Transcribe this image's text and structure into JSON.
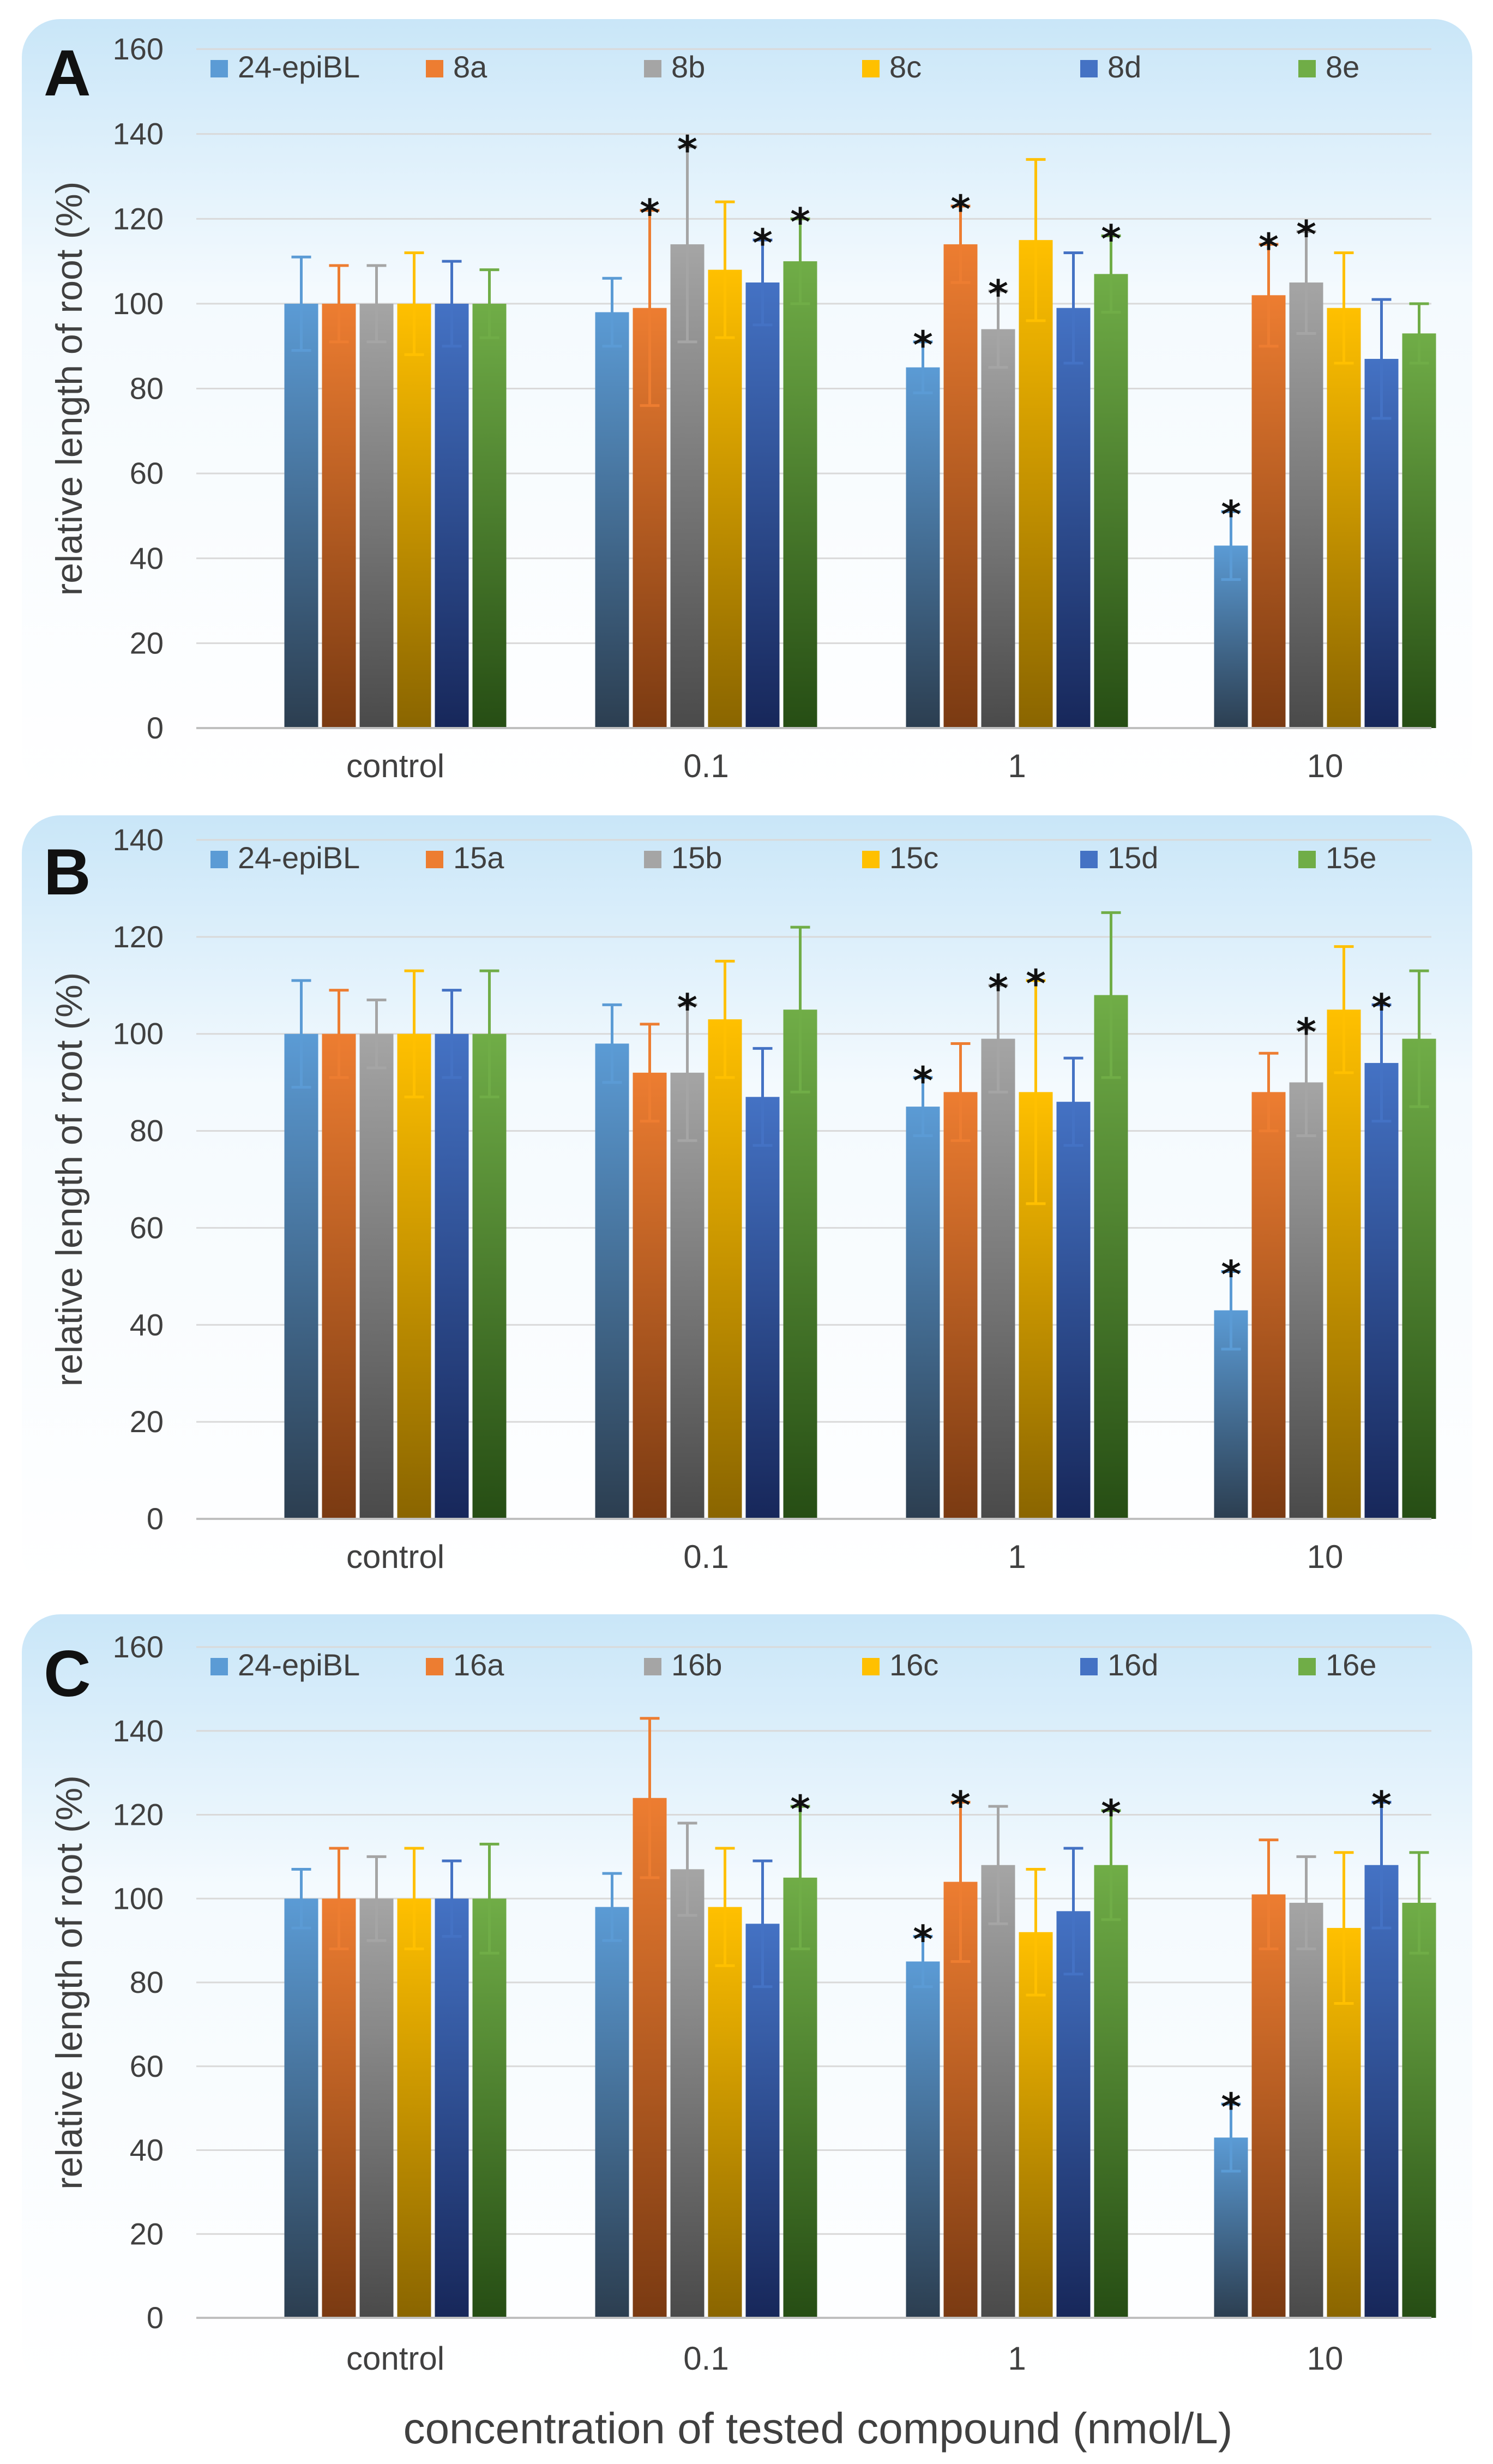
{
  "figure": {
    "xlabel": "concentration of tested compound  (nmol/L)",
    "ylabel": "relative length of root (%)",
    "colors": {
      "s1": [
        "#5b9bd5",
        "#2c3e50"
      ],
      "s2": [
        "#ed7d31",
        "#7a3a12"
      ],
      "s3": [
        "#a5a5a5",
        "#4a4a4a"
      ],
      "s4": [
        "#ffc000",
        "#8a6500"
      ],
      "s5": [
        "#4472c4",
        "#17275a"
      ],
      "s6": [
        "#70ad47",
        "#264d14"
      ]
    },
    "errColors": [
      "#5b9bd5",
      "#ed7d31",
      "#a5a5a5",
      "#ffc000",
      "#4472c4",
      "#70ad47"
    ]
  },
  "chart_data": [
    {
      "panel": "A",
      "type": "bar",
      "ylabel": "relative length of root (%)",
      "xlabel": "",
      "ylim": [
        0,
        160
      ],
      "yticks": [
        0,
        20,
        40,
        60,
        80,
        100,
        120,
        140,
        160
      ],
      "categories": [
        "control",
        "0.1",
        "1",
        "10"
      ],
      "series": [
        {
          "name": "24-epiBL",
          "values": [
            100,
            98,
            85,
            43
          ],
          "errors": [
            11,
            8,
            6,
            8
          ],
          "stars": [
            false,
            false,
            true,
            true
          ]
        },
        {
          "name": "8a",
          "values": [
            100,
            99,
            114,
            102
          ],
          "errors": [
            9,
            23,
            9,
            12
          ],
          "stars": [
            false,
            true,
            true,
            true
          ]
        },
        {
          "name": "8b",
          "values": [
            100,
            114,
            94,
            105
          ],
          "errors": [
            9,
            23,
            9,
            12
          ],
          "stars": [
            false,
            true,
            true,
            true
          ]
        },
        {
          "name": "8c",
          "values": [
            100,
            108,
            115,
            99
          ],
          "errors": [
            12,
            16,
            19,
            13
          ],
          "stars": [
            false,
            false,
            false,
            false
          ]
        },
        {
          "name": "8d",
          "values": [
            100,
            105,
            99,
            87
          ],
          "errors": [
            10,
            10,
            13,
            14
          ],
          "stars": [
            false,
            true,
            false,
            false
          ]
        },
        {
          "name": "8e",
          "values": [
            100,
            110,
            107,
            93
          ],
          "errors": [
            8,
            10,
            9,
            7
          ],
          "stars": [
            false,
            true,
            true,
            false
          ]
        }
      ]
    },
    {
      "panel": "B",
      "type": "bar",
      "ylabel": "relative length of root (%)",
      "xlabel": "",
      "ylim": [
        0,
        140
      ],
      "yticks": [
        0,
        20,
        40,
        60,
        80,
        100,
        120,
        140
      ],
      "categories": [
        "control",
        "0.1",
        "1",
        "10"
      ],
      "series": [
        {
          "name": "24-epiBL",
          "values": [
            100,
            98,
            85,
            43
          ],
          "errors": [
            11,
            8,
            6,
            8
          ],
          "stars": [
            false,
            false,
            true,
            true
          ]
        },
        {
          "name": "15a",
          "values": [
            100,
            92,
            88,
            88
          ],
          "errors": [
            9,
            10,
            10,
            8
          ],
          "stars": [
            false,
            false,
            false,
            false
          ]
        },
        {
          "name": "15b",
          "values": [
            100,
            92,
            99,
            90
          ],
          "errors": [
            7,
            14,
            11,
            11
          ],
          "stars": [
            false,
            true,
            true,
            true
          ]
        },
        {
          "name": "15c",
          "values": [
            100,
            103,
            88,
            105
          ],
          "errors": [
            13,
            12,
            23,
            13
          ],
          "stars": [
            false,
            false,
            true,
            false
          ]
        },
        {
          "name": "15d",
          "values": [
            100,
            87,
            86,
            94
          ],
          "errors": [
            9,
            10,
            9,
            12
          ],
          "stars": [
            false,
            false,
            false,
            true
          ]
        },
        {
          "name": "15e",
          "values": [
            100,
            105,
            108,
            99
          ],
          "errors": [
            13,
            17,
            17,
            14
          ],
          "stars": [
            false,
            false,
            false,
            false
          ]
        }
      ]
    },
    {
      "panel": "C",
      "type": "bar",
      "ylabel": "relative length of root (%)",
      "xlabel": "concentration of tested compound  (nmol/L)",
      "ylim": [
        0,
        160
      ],
      "yticks": [
        0,
        20,
        40,
        60,
        80,
        100,
        120,
        140,
        160
      ],
      "categories": [
        "control",
        "0.1",
        "1",
        "10"
      ],
      "series": [
        {
          "name": "24-epiBL",
          "values": [
            100,
            98,
            85,
            43
          ],
          "errors": [
            7,
            8,
            6,
            8
          ],
          "stars": [
            false,
            false,
            true,
            true
          ]
        },
        {
          "name": "16a",
          "values": [
            100,
            124,
            104,
            101
          ],
          "errors": [
            12,
            19,
            19,
            13
          ],
          "stars": [
            false,
            false,
            true,
            false
          ]
        },
        {
          "name": "16b",
          "values": [
            100,
            107,
            108,
            99
          ],
          "errors": [
            10,
            11,
            14,
            11
          ],
          "stars": [
            false,
            false,
            false,
            false
          ]
        },
        {
          "name": "16c",
          "values": [
            100,
            98,
            92,
            93
          ],
          "errors": [
            12,
            14,
            15,
            18
          ],
          "stars": [
            false,
            false,
            false,
            false
          ]
        },
        {
          "name": "16d",
          "values": [
            100,
            94,
            97,
            108
          ],
          "errors": [
            9,
            15,
            15,
            15
          ],
          "stars": [
            false,
            false,
            false,
            true
          ]
        },
        {
          "name": "16e",
          "values": [
            100,
            105,
            108,
            99
          ],
          "errors": [
            13,
            17,
            13,
            12
          ],
          "stars": [
            false,
            true,
            true,
            false
          ]
        }
      ]
    }
  ]
}
